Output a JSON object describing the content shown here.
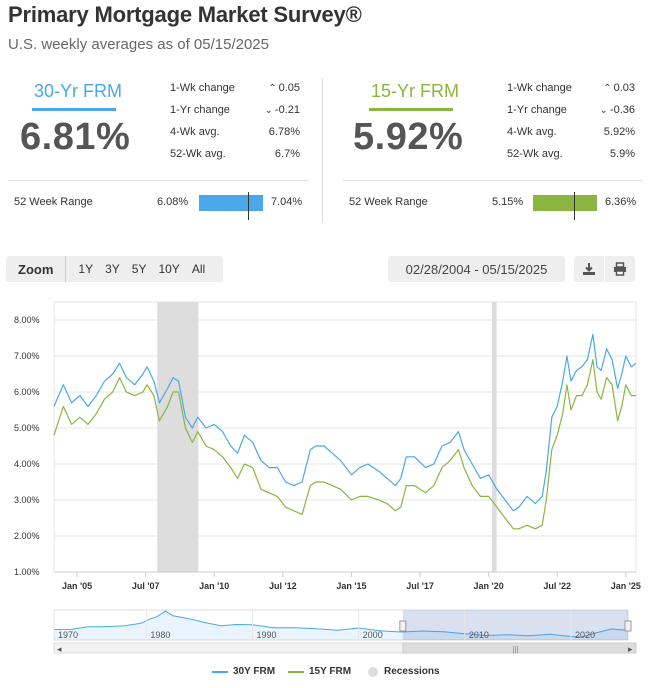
{
  "header": {
    "title": "Primary Mortgage Market Survey®",
    "subtitle": "U.S. weekly averages as of 05/15/2025"
  },
  "rates": [
    {
      "label": "30-Yr FRM",
      "color": "#4aa8e8",
      "value": "6.81%",
      "stats": [
        {
          "name": "1-Wk change",
          "value": "0.05",
          "arrow": "up"
        },
        {
          "name": "1-Yr change",
          "value": "-0.21",
          "arrow": "down"
        },
        {
          "name": "4-Wk avg.",
          "value": "6.78%"
        },
        {
          "name": "52-Wk avg.",
          "value": "6.7%"
        }
      ],
      "range_label": "52 Week Range",
      "range_low": "6.08%",
      "range_high": "7.04%",
      "range_current_fraction": 0.76
    },
    {
      "label": "15-Yr FRM",
      "color": "#8ab541",
      "value": "5.92%",
      "stats": [
        {
          "name": "1-Wk change",
          "value": "0.03",
          "arrow": "up"
        },
        {
          "name": "1-Yr change",
          "value": "-0.36",
          "arrow": "down"
        },
        {
          "name": "4-Wk avg.",
          "value": "5.92%"
        },
        {
          "name": "52-Wk avg.",
          "value": "5.9%"
        }
      ],
      "range_label": "52 Week Range",
      "range_low": "5.15%",
      "range_high": "6.36%",
      "range_current_fraction": 0.64
    }
  ],
  "toolbar": {
    "zoom_label": "Zoom",
    "zoom_options": [
      "1Y",
      "3Y",
      "5Y",
      "10Y",
      "All"
    ],
    "date_range": "02/28/2004 - 05/15/2025",
    "download_icon": "download-icon",
    "print_icon": "print-icon"
  },
  "chart_data": {
    "type": "line",
    "ylim": [
      1.0,
      8.5
    ],
    "yticks": [
      "1.00%",
      "2.00%",
      "3.00%",
      "4.00%",
      "5.00%",
      "6.00%",
      "7.00%",
      "8.00%"
    ],
    "xlim": [
      2004.16,
      2025.37
    ],
    "xticks": [
      {
        "label": "Jan '05",
        "x": 2005.0
      },
      {
        "label": "Jul '07",
        "x": 2007.5
      },
      {
        "label": "Jan '10",
        "x": 2010.0
      },
      {
        "label": "Jul '12",
        "x": 2012.5
      },
      {
        "label": "Jan '15",
        "x": 2015.0
      },
      {
        "label": "Jul '17",
        "x": 2017.5
      },
      {
        "label": "Jan '20",
        "x": 2020.0
      },
      {
        "label": "Jul '22",
        "x": 2022.5
      },
      {
        "label": "Jan '25",
        "x": 2025.0
      }
    ],
    "recessions": [
      [
        2007.92,
        2009.42
      ],
      [
        2020.12,
        2020.29
      ]
    ],
    "grid": true,
    "legend_position": "bottom",
    "series": [
      {
        "name": "30Y FRM",
        "color": "#4aa8e8",
        "x": [
          2004.16,
          2004.5,
          2004.8,
          2005.1,
          2005.4,
          2005.7,
          2006.0,
          2006.3,
          2006.55,
          2006.8,
          2007.1,
          2007.4,
          2007.55,
          2007.8,
          2008.0,
          2008.3,
          2008.5,
          2008.7,
          2008.95,
          2009.2,
          2009.4,
          2009.7,
          2010.0,
          2010.3,
          2010.6,
          2010.85,
          2011.1,
          2011.4,
          2011.7,
          2012.0,
          2012.3,
          2012.6,
          2012.9,
          2013.2,
          2013.5,
          2013.7,
          2014.0,
          2014.3,
          2014.6,
          2015.0,
          2015.3,
          2015.6,
          2016.0,
          2016.3,
          2016.6,
          2016.8,
          2017.0,
          2017.3,
          2017.7,
          2018.0,
          2018.3,
          2018.6,
          2018.9,
          2019.1,
          2019.4,
          2019.7,
          2020.0,
          2020.3,
          2020.6,
          2020.9,
          2021.1,
          2021.4,
          2021.7,
          2021.95,
          2022.1,
          2022.3,
          2022.5,
          2022.7,
          2022.85,
          2023.0,
          2023.2,
          2023.4,
          2023.6,
          2023.8,
          2023.95,
          2024.1,
          2024.3,
          2024.5,
          2024.7,
          2024.85,
          2025.0,
          2025.2,
          2025.37
        ],
        "y": [
          5.6,
          6.2,
          5.7,
          5.9,
          5.6,
          5.9,
          6.3,
          6.5,
          6.8,
          6.4,
          6.2,
          6.5,
          6.7,
          6.3,
          5.7,
          6.1,
          6.4,
          6.3,
          5.3,
          5.0,
          5.3,
          5.0,
          5.1,
          4.9,
          4.5,
          4.3,
          4.8,
          4.6,
          4.1,
          3.9,
          3.9,
          3.5,
          3.4,
          3.5,
          4.4,
          4.5,
          4.5,
          4.3,
          4.1,
          3.7,
          3.9,
          4.0,
          3.8,
          3.6,
          3.4,
          3.6,
          4.2,
          4.2,
          3.9,
          4.0,
          4.5,
          4.6,
          4.9,
          4.4,
          4.0,
          3.6,
          3.7,
          3.3,
          3.0,
          2.7,
          2.8,
          3.1,
          2.9,
          3.1,
          3.8,
          5.3,
          5.6,
          6.3,
          7.0,
          6.3,
          6.6,
          6.7,
          6.9,
          7.6,
          6.7,
          6.6,
          7.2,
          6.9,
          6.1,
          6.5,
          7.0,
          6.7,
          6.8
        ]
      },
      {
        "name": "15Y FRM",
        "color": "#8ab541",
        "x": [
          2004.16,
          2004.5,
          2004.8,
          2005.1,
          2005.4,
          2005.7,
          2006.0,
          2006.3,
          2006.55,
          2006.8,
          2007.1,
          2007.4,
          2007.55,
          2007.8,
          2008.0,
          2008.3,
          2008.5,
          2008.7,
          2008.95,
          2009.2,
          2009.4,
          2009.7,
          2010.0,
          2010.3,
          2010.6,
          2010.85,
          2011.1,
          2011.4,
          2011.7,
          2012.0,
          2012.3,
          2012.6,
          2012.9,
          2013.2,
          2013.5,
          2013.7,
          2014.0,
          2014.3,
          2014.6,
          2015.0,
          2015.3,
          2015.6,
          2016.0,
          2016.3,
          2016.6,
          2016.8,
          2017.0,
          2017.3,
          2017.7,
          2018.0,
          2018.3,
          2018.6,
          2018.9,
          2019.1,
          2019.4,
          2019.7,
          2020.0,
          2020.3,
          2020.6,
          2020.9,
          2021.1,
          2021.4,
          2021.7,
          2021.95,
          2022.1,
          2022.3,
          2022.5,
          2022.7,
          2022.85,
          2023.0,
          2023.2,
          2023.4,
          2023.6,
          2023.8,
          2023.95,
          2024.1,
          2024.3,
          2024.5,
          2024.7,
          2024.85,
          2025.0,
          2025.2,
          2025.37
        ],
        "y": [
          4.8,
          5.6,
          5.1,
          5.3,
          5.1,
          5.4,
          5.8,
          6.0,
          6.4,
          6.0,
          5.9,
          6.0,
          6.2,
          5.9,
          5.2,
          5.6,
          6.0,
          6.0,
          5.0,
          4.6,
          4.9,
          4.5,
          4.4,
          4.2,
          3.9,
          3.6,
          4.0,
          3.9,
          3.3,
          3.2,
          3.1,
          2.8,
          2.7,
          2.6,
          3.4,
          3.5,
          3.5,
          3.4,
          3.3,
          3.0,
          3.1,
          3.1,
          3.0,
          2.9,
          2.7,
          2.8,
          3.4,
          3.4,
          3.2,
          3.4,
          3.9,
          4.1,
          4.4,
          3.9,
          3.4,
          3.1,
          3.1,
          2.8,
          2.5,
          2.2,
          2.2,
          2.3,
          2.2,
          2.3,
          3.0,
          4.4,
          4.8,
          5.4,
          6.2,
          5.5,
          5.9,
          5.9,
          6.2,
          6.9,
          6.0,
          5.8,
          6.4,
          6.2,
          5.2,
          5.6,
          6.2,
          5.9,
          5.9
        ]
      }
    ],
    "navigator": {
      "xlim": [
        1971.3,
        2025.37
      ],
      "ticks": [
        {
          "label": "1970",
          "x": 1971.3
        },
        {
          "label": "1980",
          "x": 1980
        },
        {
          "label": "1990",
          "x": 1990
        },
        {
          "label": "2000",
          "x": 2000
        },
        {
          "label": "2010",
          "x": 2010
        },
        {
          "label": "2020",
          "x": 2020
        }
      ],
      "selection": [
        2004.16,
        2025.37
      ],
      "series": {
        "x": [
          1971.3,
          1973,
          1974.5,
          1976,
          1978,
          1979.5,
          1980.3,
          1981,
          1981.8,
          1982.5,
          1984,
          1985.5,
          1987,
          1988.5,
          1990,
          1992,
          1994,
          1996,
          1998,
          2000,
          2002,
          2004,
          2006,
          2008,
          2010,
          2012,
          2014,
          2016,
          2018,
          2020,
          2021,
          2022.5,
          2023.8,
          2025.37
        ],
        "y": [
          7.3,
          7.4,
          9.0,
          9.0,
          9.6,
          11.0,
          13.5,
          15.0,
          18.4,
          15.5,
          13.8,
          11.5,
          9.5,
          10.3,
          10.1,
          8.4,
          8.4,
          7.8,
          6.9,
          8.2,
          6.5,
          5.8,
          6.4,
          6.0,
          4.7,
          3.7,
          4.2,
          3.6,
          4.5,
          3.1,
          2.8,
          5.5,
          7.6,
          6.8
        ]
      }
    },
    "legend": [
      {
        "label": "30Y FRM",
        "color": "#4aa8e8",
        "kind": "line"
      },
      {
        "label": "15Y FRM",
        "color": "#8ab541",
        "kind": "line"
      },
      {
        "label": "Recessions",
        "color": "#dddddd",
        "kind": "dot"
      }
    ]
  }
}
